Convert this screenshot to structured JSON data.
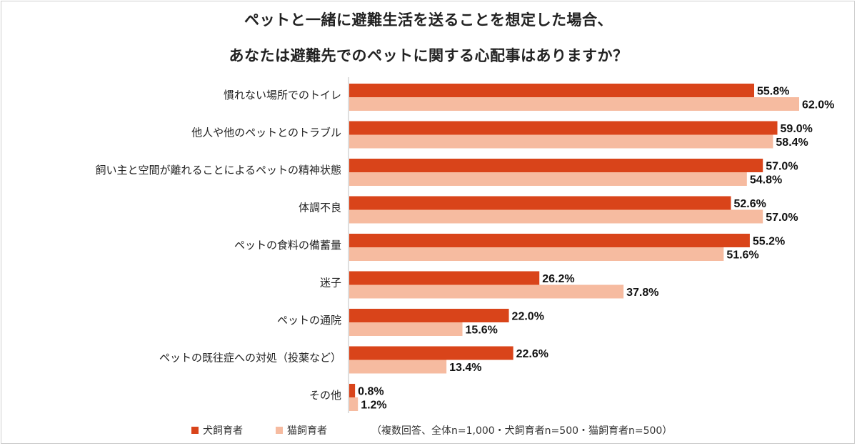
{
  "chart_data": {
    "type": "bar",
    "orientation": "horizontal",
    "title_line1": "ペットと一緒に避難生活を送ることを想定した場合、",
    "title_line2": "あなたは避難先でのペットに関する心配事はありますか？",
    "categories": [
      "慣れない場所でのトイレ",
      "他人や他のペットとのトラブル",
      "飼い主と空間が離れることによるペットの精神状態",
      "体調不良",
      "ペットの食料の備蓄量",
      "迷子",
      "ペットの通院",
      "ペットの既往症への対処（投薬など）",
      "その他"
    ],
    "series": [
      {
        "name": "犬飼育者",
        "color": "#d9441a",
        "values": [
          55.8,
          59.0,
          57.0,
          52.6,
          55.2,
          26.2,
          22.0,
          22.6,
          0.8
        ],
        "labels": [
          "55.8%",
          "59.0%",
          "57.0%",
          "52.6%",
          "55.2%",
          "26.2%",
          "22.0%",
          "22.6%",
          "0.8%"
        ]
      },
      {
        "name": "猫飼育者",
        "color": "#f6bba0",
        "values": [
          62.0,
          58.4,
          54.8,
          57.0,
          51.6,
          37.8,
          15.6,
          13.4,
          1.2
        ],
        "labels": [
          "62.0%",
          "58.4%",
          "54.8%",
          "57.0%",
          "51.6%",
          "37.8%",
          "15.6%",
          "13.4%",
          "1.2%"
        ]
      }
    ],
    "value_unit": "%",
    "xlim": [
      0,
      62.0
    ],
    "grid": false,
    "legend_position": "bottom-left",
    "note": "（複数回答、全体n=1,000・犬飼育者n=500・猫飼育者n=500）"
  }
}
